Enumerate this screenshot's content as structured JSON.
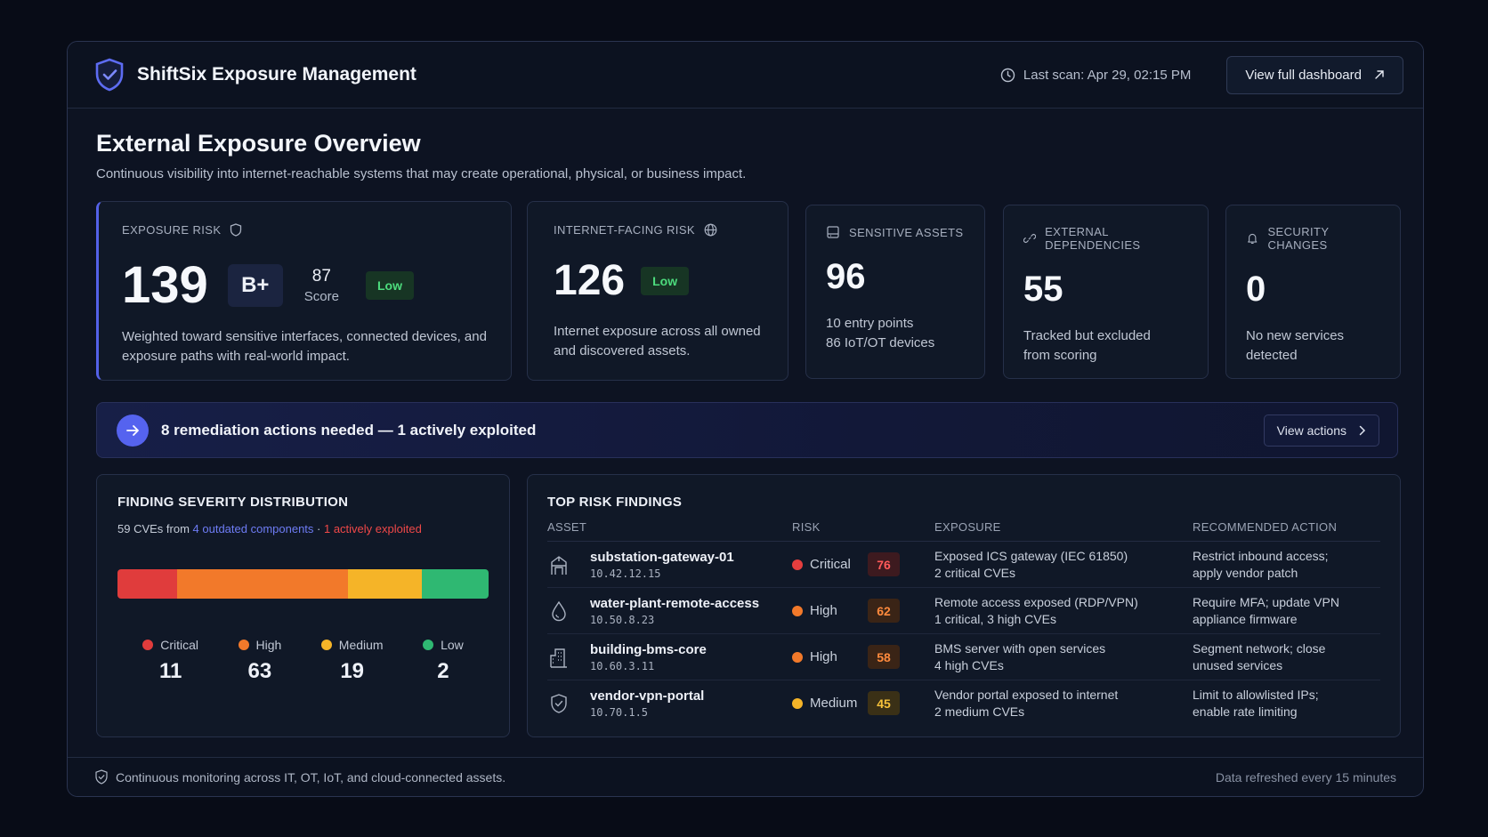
{
  "header": {
    "title": "ShiftSix Exposure Management",
    "last_scan": "Last scan: Apr 29, 02:15 PM",
    "dashboard_button": "View full dashboard"
  },
  "page": {
    "title": "External Exposure Overview",
    "subtitle": "Continuous visibility into internet-reachable systems that may create operational, physical, or business impact."
  },
  "exposure_risk": {
    "label": "EXPOSURE RISK",
    "value": "139",
    "grade": "B+",
    "score": "87",
    "score_label": "Score",
    "badge": "Low",
    "description": "Weighted toward sensitive interfaces, connected devices, and exposure paths with real-world impact."
  },
  "internet_risk": {
    "label": "INTERNET-FACING RISK",
    "value": "126",
    "badge": "Low",
    "description": "Internet exposure across all owned and discovered assets."
  },
  "sensitive_assets": {
    "label": "SENSITIVE ASSETS",
    "value": "96",
    "line1": "10 entry points",
    "line2": "86 IoT/OT devices"
  },
  "external_dependencies": {
    "label": "EXTERNAL DEPENDENCIES",
    "value": "55",
    "line1": "Tracked but excluded",
    "line2": "from scoring"
  },
  "security_changes": {
    "label": "SECURITY CHANGES",
    "value": "0",
    "line1": "No new services",
    "line2": "detected"
  },
  "action_bar": {
    "text": "8 remediation actions needed — 1 actively exploited",
    "button": "View actions"
  },
  "severity": {
    "title": "FINDING SEVERITY DISTRIBUTION",
    "sub_prefix": "59 CVEs from ",
    "sub_link": "4 outdated components",
    "sub_sep": " · ",
    "sub_exploited": "1 actively exploited",
    "items": [
      {
        "label": "Critical",
        "value": "11",
        "color": "#e03c3c"
      },
      {
        "label": "High",
        "value": "63",
        "color": "#f2792a"
      },
      {
        "label": "Medium",
        "value": "19",
        "color": "#f5b428"
      },
      {
        "label": "Low",
        "value": "2",
        "color": "#2fb872"
      }
    ]
  },
  "findings": {
    "title": "TOP RISK FINDINGS",
    "columns": [
      "ASSET",
      "RISK",
      "EXPOSURE",
      "RECOMMENDED ACTION"
    ],
    "rows": [
      {
        "asset": "substation-gateway-01",
        "ip": "10.42.12.15",
        "risk": "Critical",
        "score": "76",
        "exposure1": "Exposed ICS gateway (IEC 61850)",
        "exposure2": "2 critical CVEs",
        "action1": "Restrict inbound access;",
        "action2": "apply vendor patch"
      },
      {
        "asset": "water-plant-remote-access",
        "ip": "10.50.8.23",
        "risk": "High",
        "score": "62",
        "exposure1": "Remote access exposed (RDP/VPN)",
        "exposure2": "1 critical, 3 high CVEs",
        "action1": "Require MFA; update VPN",
        "action2": "appliance firmware"
      },
      {
        "asset": "building-bms-core",
        "ip": "10.60.3.11",
        "risk": "High",
        "score": "58",
        "exposure1": "BMS server with open services",
        "exposure2": "4 high CVEs",
        "action1": "Segment network; close",
        "action2": "unused services"
      },
      {
        "asset": "vendor-vpn-portal",
        "ip": "10.70.1.5",
        "risk": "Medium",
        "score": "45",
        "exposure1": "Vendor portal exposed to internet",
        "exposure2": "2 medium CVEs",
        "action1": "Limit to allowlisted IPs;",
        "action2": "enable rate limiting"
      }
    ]
  },
  "footer": {
    "left": "Continuous monitoring across IT, OT, IoT, and cloud-connected assets.",
    "right": "Data refreshed every 15 minutes"
  }
}
